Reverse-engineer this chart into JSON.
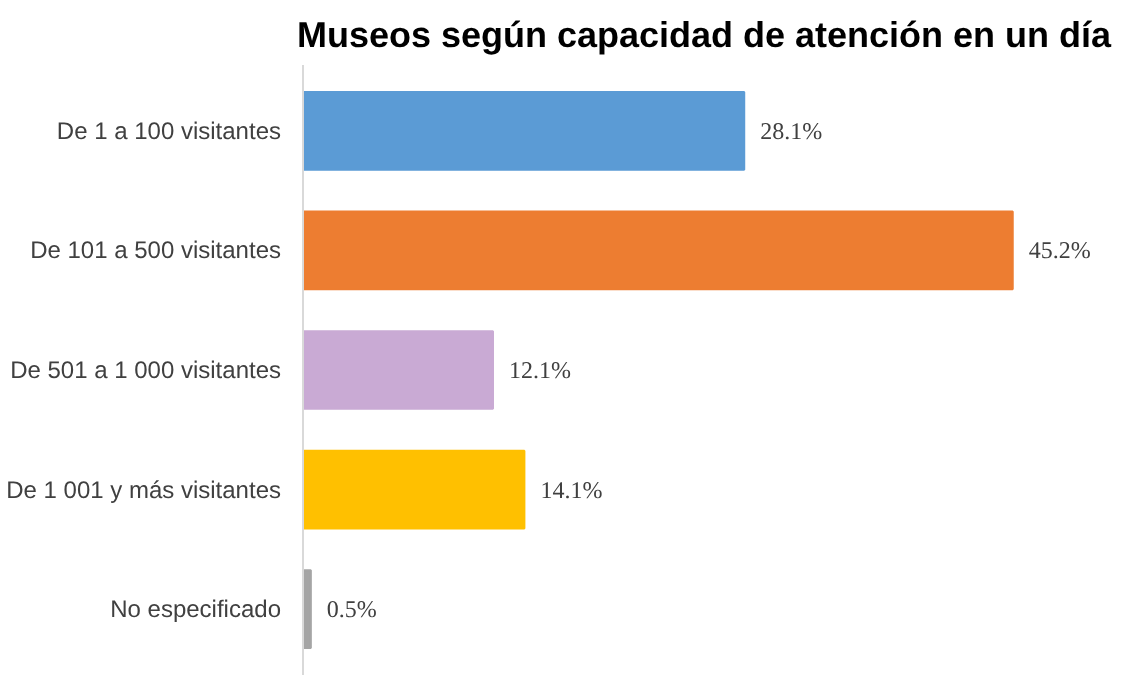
{
  "chart_data": {
    "type": "bar",
    "orientation": "horizontal",
    "title": "Museos según capacidad de atención en un día",
    "categories": [
      "De 1 a 100 visitantes",
      "De 101 a 500 visitantes",
      "De 501 a 1 000 visitantes",
      "De 1 001 y más visitantes",
      "No especificado"
    ],
    "values": [
      28.1,
      45.2,
      12.1,
      14.1,
      0.5
    ],
    "colors": [
      "#5b9bd5",
      "#ed7d31",
      "#c9aad4",
      "#ffc000",
      "#a5a5a5"
    ],
    "value_labels": [
      "28.1%",
      "45.2%",
      "12.1%",
      "14.1%",
      "0.5%"
    ]
  }
}
